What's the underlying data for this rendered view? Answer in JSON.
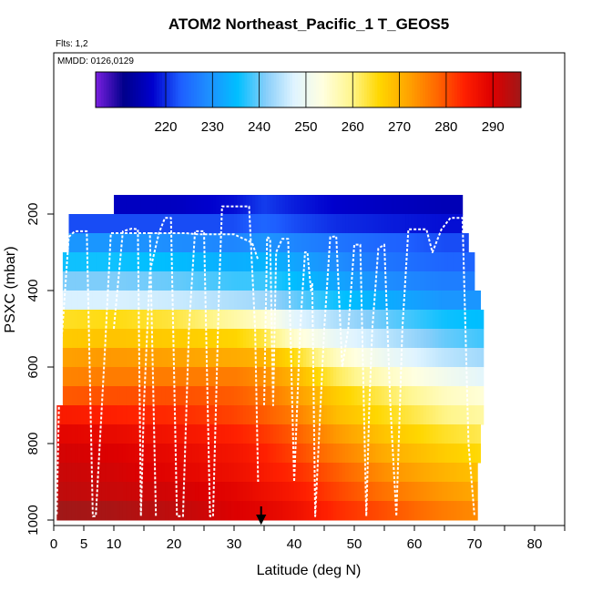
{
  "chart_data": {
    "type": "heatmap",
    "title": "ATOM2 Northeast_Pacific_1 T_GEOS5",
    "flights_note": "Flts: 1,2",
    "date_note": "MMDD: 0126,0129",
    "xlabel": "Latitude (deg N)",
    "ylabel": "PSXC (mbar)",
    "xlim": [
      0,
      85
    ],
    "ylim": [
      1000,
      100
    ],
    "x_ticks": [
      0,
      5,
      10,
      20,
      30,
      40,
      50,
      60,
      70,
      80
    ],
    "y_ticks": [
      200,
      400,
      600,
      800,
      1000
    ],
    "colorbar": {
      "range": [
        205,
        296
      ],
      "ticks": [
        220,
        230,
        240,
        250,
        260,
        270,
        280,
        290
      ],
      "colors": [
        "#7a1fe0",
        "#00008b",
        "#0000cd",
        "#1e5fff",
        "#1e90ff",
        "#00bfff",
        "#87cefa",
        "#e0f4ff",
        "#ffffe0",
        "#fff68f",
        "#ffd700",
        "#ffa500",
        "#ff6a00",
        "#ff2000",
        "#dd0000",
        "#a01818"
      ]
    },
    "pressure_levels": [
      175,
      225,
      275,
      325,
      375,
      425,
      475,
      525,
      575,
      625,
      675,
      725,
      775,
      825,
      875,
      925,
      975
    ],
    "lat_start": [
      10,
      2.5,
      2.5,
      1.5,
      1.5,
      1.5,
      1.5,
      1.5,
      1.5,
      1.5,
      1.5,
      0.5,
      0.5,
      0.5,
      0.5,
      0.5,
      0.5
    ],
    "lat_end": [
      68,
      68,
      69,
      70,
      70,
      71,
      71.5,
      71.5,
      71.5,
      71.5,
      71.5,
      71.5,
      71,
      71,
      70.5,
      70.5,
      70.5
    ],
    "temperature_profile": {
      "latitudes": [
        0,
        10,
        20,
        30,
        35,
        40,
        47,
        55,
        65,
        72
      ],
      "rows": [
        [
          216,
          216,
          216,
          218,
          221,
          219,
          217,
          216,
          215,
          215
        ],
        [
          222,
          222,
          222,
          222,
          224,
          222,
          220,
          219,
          218,
          218
        ],
        [
          230,
          230,
          229,
          228,
          230,
          228,
          226,
          224,
          222,
          222
        ],
        [
          236,
          236,
          235,
          233,
          234,
          232,
          229,
          226,
          224,
          224
        ],
        [
          241,
          241,
          240,
          238,
          238,
          235,
          232,
          229,
          227,
          227
        ],
        [
          247,
          247,
          246,
          244,
          243,
          240,
          236,
          233,
          230,
          230
        ],
        [
          264,
          265,
          263,
          258,
          255,
          248,
          244,
          240,
          236,
          235
        ],
        [
          267,
          268,
          267,
          266,
          263,
          255,
          249,
          245,
          240,
          238
        ],
        [
          272,
          273,
          272,
          271,
          270,
          265,
          256,
          250,
          245,
          243
        ],
        [
          275,
          276,
          276,
          276,
          274,
          270,
          262,
          256,
          251,
          248
        ],
        [
          279,
          280,
          280,
          279,
          277,
          273,
          267,
          262,
          256,
          254
        ],
        [
          285,
          284,
          283,
          281,
          279,
          276,
          269,
          265,
          260,
          258
        ],
        [
          289,
          288,
          286,
          284,
          282,
          279,
          273,
          268,
          264,
          262
        ],
        [
          291,
          290,
          288,
          286,
          284,
          281,
          276,
          271,
          267,
          265
        ],
        [
          292,
          291,
          289,
          287,
          285,
          283,
          279,
          274,
          270,
          268
        ],
        [
          293,
          292,
          291,
          289,
          287,
          285,
          281,
          277,
          273,
          271
        ],
        [
          296,
          295,
          293,
          290,
          289,
          287,
          283,
          280,
          276,
          274
        ]
      ]
    },
    "marker_latitude": 34.5
  }
}
